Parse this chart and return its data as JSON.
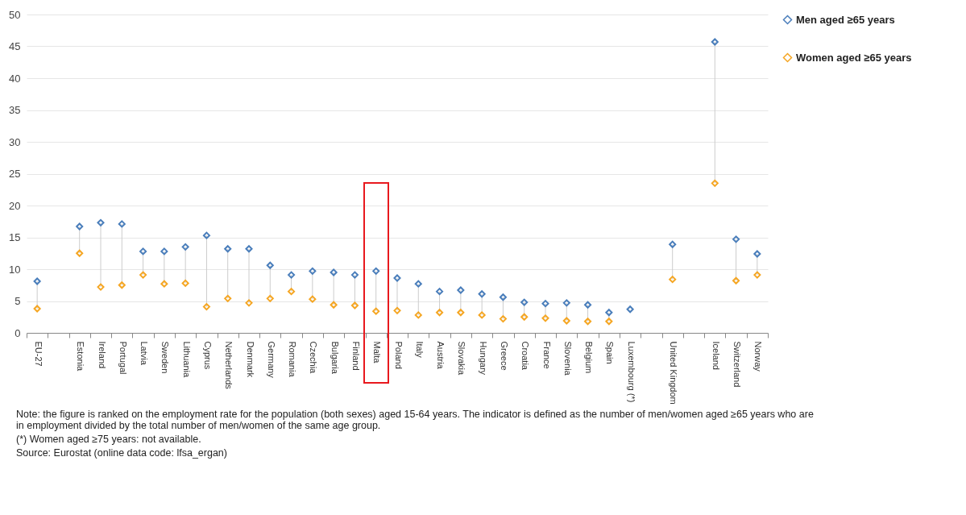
{
  "chart_data": {
    "type": "scatter",
    "categories": [
      "EU-27",
      null,
      "Estonia",
      "Ireland",
      "Portugal",
      "Latvia",
      "Sweden",
      "Lithuania",
      "Cyprus",
      "Netherlands",
      "Denmark",
      "Germany",
      "Romania",
      "Czechia",
      "Bulgaria",
      "Finland",
      "Malta",
      "Poland",
      "Italy",
      "Austria",
      "Slovakia",
      "Hungary",
      "Greece",
      "Croatia",
      "France",
      "Slovenia",
      "Belgium",
      "Spain",
      "Luxembourg (*)",
      null,
      "United Kingdom",
      null,
      "Iceland",
      "Switzerland",
      "Norway"
    ],
    "series": [
      {
        "name": "Men aged ≥65 years",
        "color": "#4a7ebb",
        "values": [
          8.1,
          null,
          16.7,
          17.3,
          17.1,
          12.8,
          12.8,
          13.5,
          15.3,
          13.2,
          13.2,
          10.6,
          9.1,
          9.7,
          9.5,
          9.1,
          9.7,
          8.6,
          7.7,
          6.5,
          6.7,
          6.1,
          5.6,
          4.8,
          4.6,
          4.7,
          4.4,
          3.2,
          3.7,
          null,
          13.9,
          null,
          45.7,
          14.7,
          12.4
        ]
      },
      {
        "name": "Women aged ≥65 years",
        "color": "#f5a623",
        "values": [
          3.8,
          null,
          12.5,
          7.2,
          7.5,
          9.1,
          7.7,
          7.8,
          4.1,
          5.4,
          4.7,
          5.4,
          6.5,
          5.3,
          4.4,
          4.3,
          3.4,
          3.5,
          2.8,
          3.2,
          3.2,
          2.8,
          2.2,
          2.5,
          2.3,
          1.9,
          1.8,
          1.8,
          null,
          null,
          8.4,
          null,
          23.5,
          8.2,
          9.1
        ]
      }
    ],
    "ylim": [
      0,
      50
    ],
    "yticks": [
      0,
      5,
      10,
      15,
      20,
      25,
      30,
      35,
      40,
      45,
      50
    ],
    "grid": "y",
    "legend": "right",
    "marker": "diamond",
    "annotations": [
      "Note: the figure is ranked on the employment rate for the population (both sexes) aged 15-64 years. The indicator is defined as the number of men/women aged ≥65 years who are in employment divided by the total number of men/women of the same age group.",
      "(*) Women aged ≥75 years: not available.",
      "Source: Eurostat (online data code: lfsa_ergan)"
    ]
  }
}
